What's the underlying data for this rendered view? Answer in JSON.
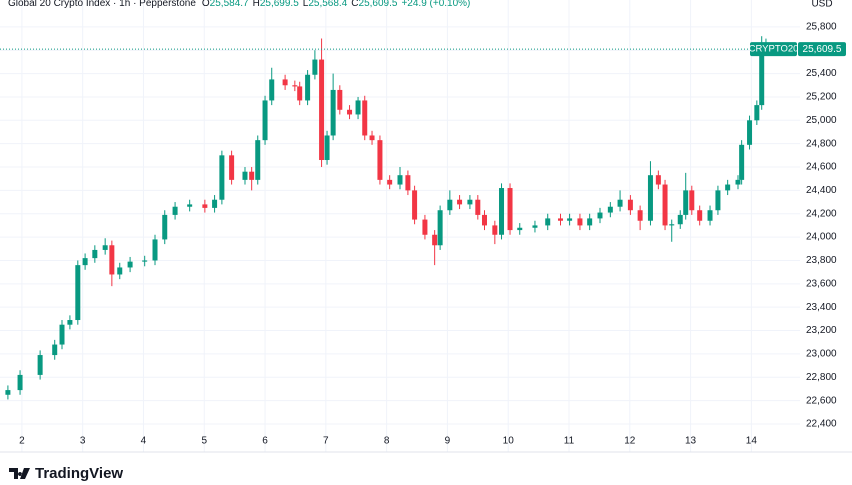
{
  "brand": "TradingView",
  "chart_data": {
    "type": "candlestick",
    "header": {
      "title": "Global 20 Crypto Index · 1h · Pepperstone",
      "fields": [
        {
          "key": "O",
          "value": "25,584.7"
        },
        {
          "key": "H",
          "value": "25,699.5"
        },
        {
          "key": "L",
          "value": "25,568.4"
        },
        {
          "key": "C",
          "value": "25,609.5"
        }
      ],
      "change": "+24.9 (+0.10%)"
    },
    "y_axis_unit": "USD",
    "symbol_label": "CRYPTO20",
    "last_price_label": "25,609.5",
    "up_color": "#089981",
    "down_color": "#f23645",
    "grid": true,
    "xlim": [
      1.64,
      14.8
    ],
    "xticks": [
      2,
      3,
      4,
      5,
      6,
      7,
      8,
      9,
      10,
      11,
      12,
      13,
      14
    ],
    "ylim": [
      22160,
      26030
    ],
    "yticks": [
      {
        "value": 22400,
        "label": "22,400"
      },
      {
        "value": 22600,
        "label": "22,600"
      },
      {
        "value": 22800,
        "label": "22,800"
      },
      {
        "value": 23000,
        "label": "23,000"
      },
      {
        "value": 23200,
        "label": "23,200"
      },
      {
        "value": 23400,
        "label": "23,400"
      },
      {
        "value": 23600,
        "label": "23,600"
      },
      {
        "value": 23800,
        "label": "23,800"
      },
      {
        "value": 24000,
        "label": "24,000"
      },
      {
        "value": 24200,
        "label": "24,200"
      },
      {
        "value": 24400,
        "label": "24,400"
      },
      {
        "value": 24600,
        "label": "24,600"
      },
      {
        "value": 24800,
        "label": "24,800"
      },
      {
        "value": 25000,
        "label": "25,000"
      },
      {
        "value": 25200,
        "label": "25,200"
      },
      {
        "value": 25400,
        "label": "25,400"
      },
      {
        "value": 25600,
        "label": "25,600"
      },
      {
        "value": 25800,
        "label": "25,800"
      }
    ],
    "x": [
      1.77,
      1.97,
      2.3,
      2.54,
      2.66,
      2.79,
      2.92,
      3.04,
      3.2,
      3.37,
      3.48,
      3.61,
      3.78,
      4.02,
      4.19,
      4.35,
      4.52,
      4.76,
      5.01,
      5.17,
      5.29,
      5.45,
      5.67,
      5.78,
      5.88,
      6.0,
      6.11,
      6.33,
      6.49,
      6.57,
      6.7,
      6.82,
      6.93,
      7.02,
      7.12,
      7.23,
      7.39,
      7.53,
      7.64,
      7.76,
      7.89,
      8.05,
      8.22,
      8.35,
      8.46,
      8.63,
      8.79,
      8.88,
      9.04,
      9.2,
      9.37,
      9.5,
      9.61,
      9.78,
      9.89,
      10.03,
      10.19,
      10.44,
      10.65,
      10.86,
      11.01,
      11.18,
      11.34,
      11.51,
      11.68,
      11.84,
      12.01,
      12.17,
      12.34,
      12.47,
      12.58,
      12.69,
      12.83,
      12.92,
      13.02,
      13.15,
      13.32,
      13.45,
      13.61,
      13.78,
      13.84,
      13.97,
      14.09,
      14.17,
      14.24
    ],
    "open": [
      22650,
      22690,
      22820,
      22990,
      23080,
      23250,
      23290,
      23760,
      23820,
      23890,
      23930,
      23680,
      23740,
      23790,
      23800,
      23980,
      24190,
      24260,
      24280,
      24250,
      24320,
      24700,
      24490,
      24560,
      24490,
      24830,
      25170,
      25350,
      25300,
      25290,
      25170,
      25390,
      25520,
      24660,
      24870,
      25260,
      25090,
      25050,
      25170,
      24870,
      24830,
      24490,
      24450,
      24530,
      24400,
      24150,
      24020,
      23930,
      24230,
      24320,
      24280,
      24320,
      24190,
      24100,
      24020,
      24420,
      24060,
      24080,
      24100,
      24160,
      24140,
      24160,
      24100,
      24160,
      24210,
      24260,
      24320,
      24230,
      24140,
      24530,
      24450,
      24100,
      24110,
      24190,
      24400,
      24230,
      24140,
      24230,
      24400,
      24450,
      24490,
      24790,
      25000,
      25130,
      25584.7
    ],
    "high": [
      22730,
      22860,
      23030,
      23120,
      23290,
      23330,
      23800,
      23860,
      23930,
      23990,
      23970,
      23780,
      23830,
      23840,
      24020,
      24230,
      24300,
      24320,
      24320,
      24360,
      24740,
      24740,
      24600,
      24600,
      24870,
      25210,
      25450,
      25390,
      25340,
      25330,
      25430,
      25600,
      25700,
      24910,
      25400,
      25300,
      25130,
      25200,
      25210,
      24910,
      24870,
      24530,
      24600,
      24570,
      24440,
      24190,
      24060,
      24270,
      24400,
      24360,
      24360,
      24360,
      24230,
      24140,
      24460,
      24460,
      24120,
      24140,
      24200,
      24200,
      24200,
      24200,
      24200,
      24250,
      24300,
      24400,
      24360,
      24270,
      24650,
      24570,
      24490,
      24150,
      24230,
      24550,
      24440,
      24270,
      24270,
      24440,
      24490,
      24530,
      24830,
      25040,
      25170,
      25720,
      25699.5
    ],
    "low": [
      22610,
      22650,
      22780,
      22950,
      23040,
      23210,
      23250,
      23720,
      23780,
      23850,
      23580,
      23640,
      23700,
      23750,
      23760,
      23940,
      24150,
      24220,
      24210,
      24210,
      24280,
      24450,
      24450,
      24400,
      24450,
      24790,
      25130,
      25260,
      25250,
      25130,
      25130,
      25350,
      24600,
      24620,
      24830,
      25050,
      25010,
      25010,
      24830,
      24790,
      24450,
      24410,
      24410,
      24360,
      24110,
      23980,
      23760,
      23890,
      24190,
      24240,
      24240,
      24150,
      24060,
      23940,
      23980,
      24020,
      24020,
      24040,
      24060,
      24100,
      24100,
      24060,
      24060,
      24120,
      24170,
      24220,
      24190,
      24060,
      24100,
      24410,
      24060,
      23960,
      24070,
      24150,
      24190,
      24100,
      24100,
      24190,
      24360,
      24410,
      24450,
      24750,
      24960,
      25090,
      25568.4
    ],
    "close": [
      22690,
      22820,
      22990,
      23080,
      23250,
      23290,
      23760,
      23820,
      23890,
      23930,
      23680,
      23740,
      23790,
      23800,
      23980,
      24190,
      24260,
      24280,
      24250,
      24320,
      24700,
      24490,
      24560,
      24490,
      24830,
      25170,
      25350,
      25300,
      25290,
      25170,
      25390,
      25520,
      24660,
      24870,
      25260,
      25090,
      25050,
      25170,
      24870,
      24830,
      24490,
      24450,
      24530,
      24400,
      24150,
      24020,
      23930,
      24230,
      24320,
      24280,
      24320,
      24190,
      24100,
      24020,
      24420,
      24060,
      24080,
      24100,
      24160,
      24140,
      24160,
      24100,
      24160,
      24210,
      24260,
      24320,
      24230,
      24140,
      24530,
      24450,
      24100,
      24110,
      24190,
      24400,
      24230,
      24140,
      24230,
      24400,
      24450,
      24490,
      24790,
      25000,
      25130,
      25560,
      25609.5
    ]
  }
}
